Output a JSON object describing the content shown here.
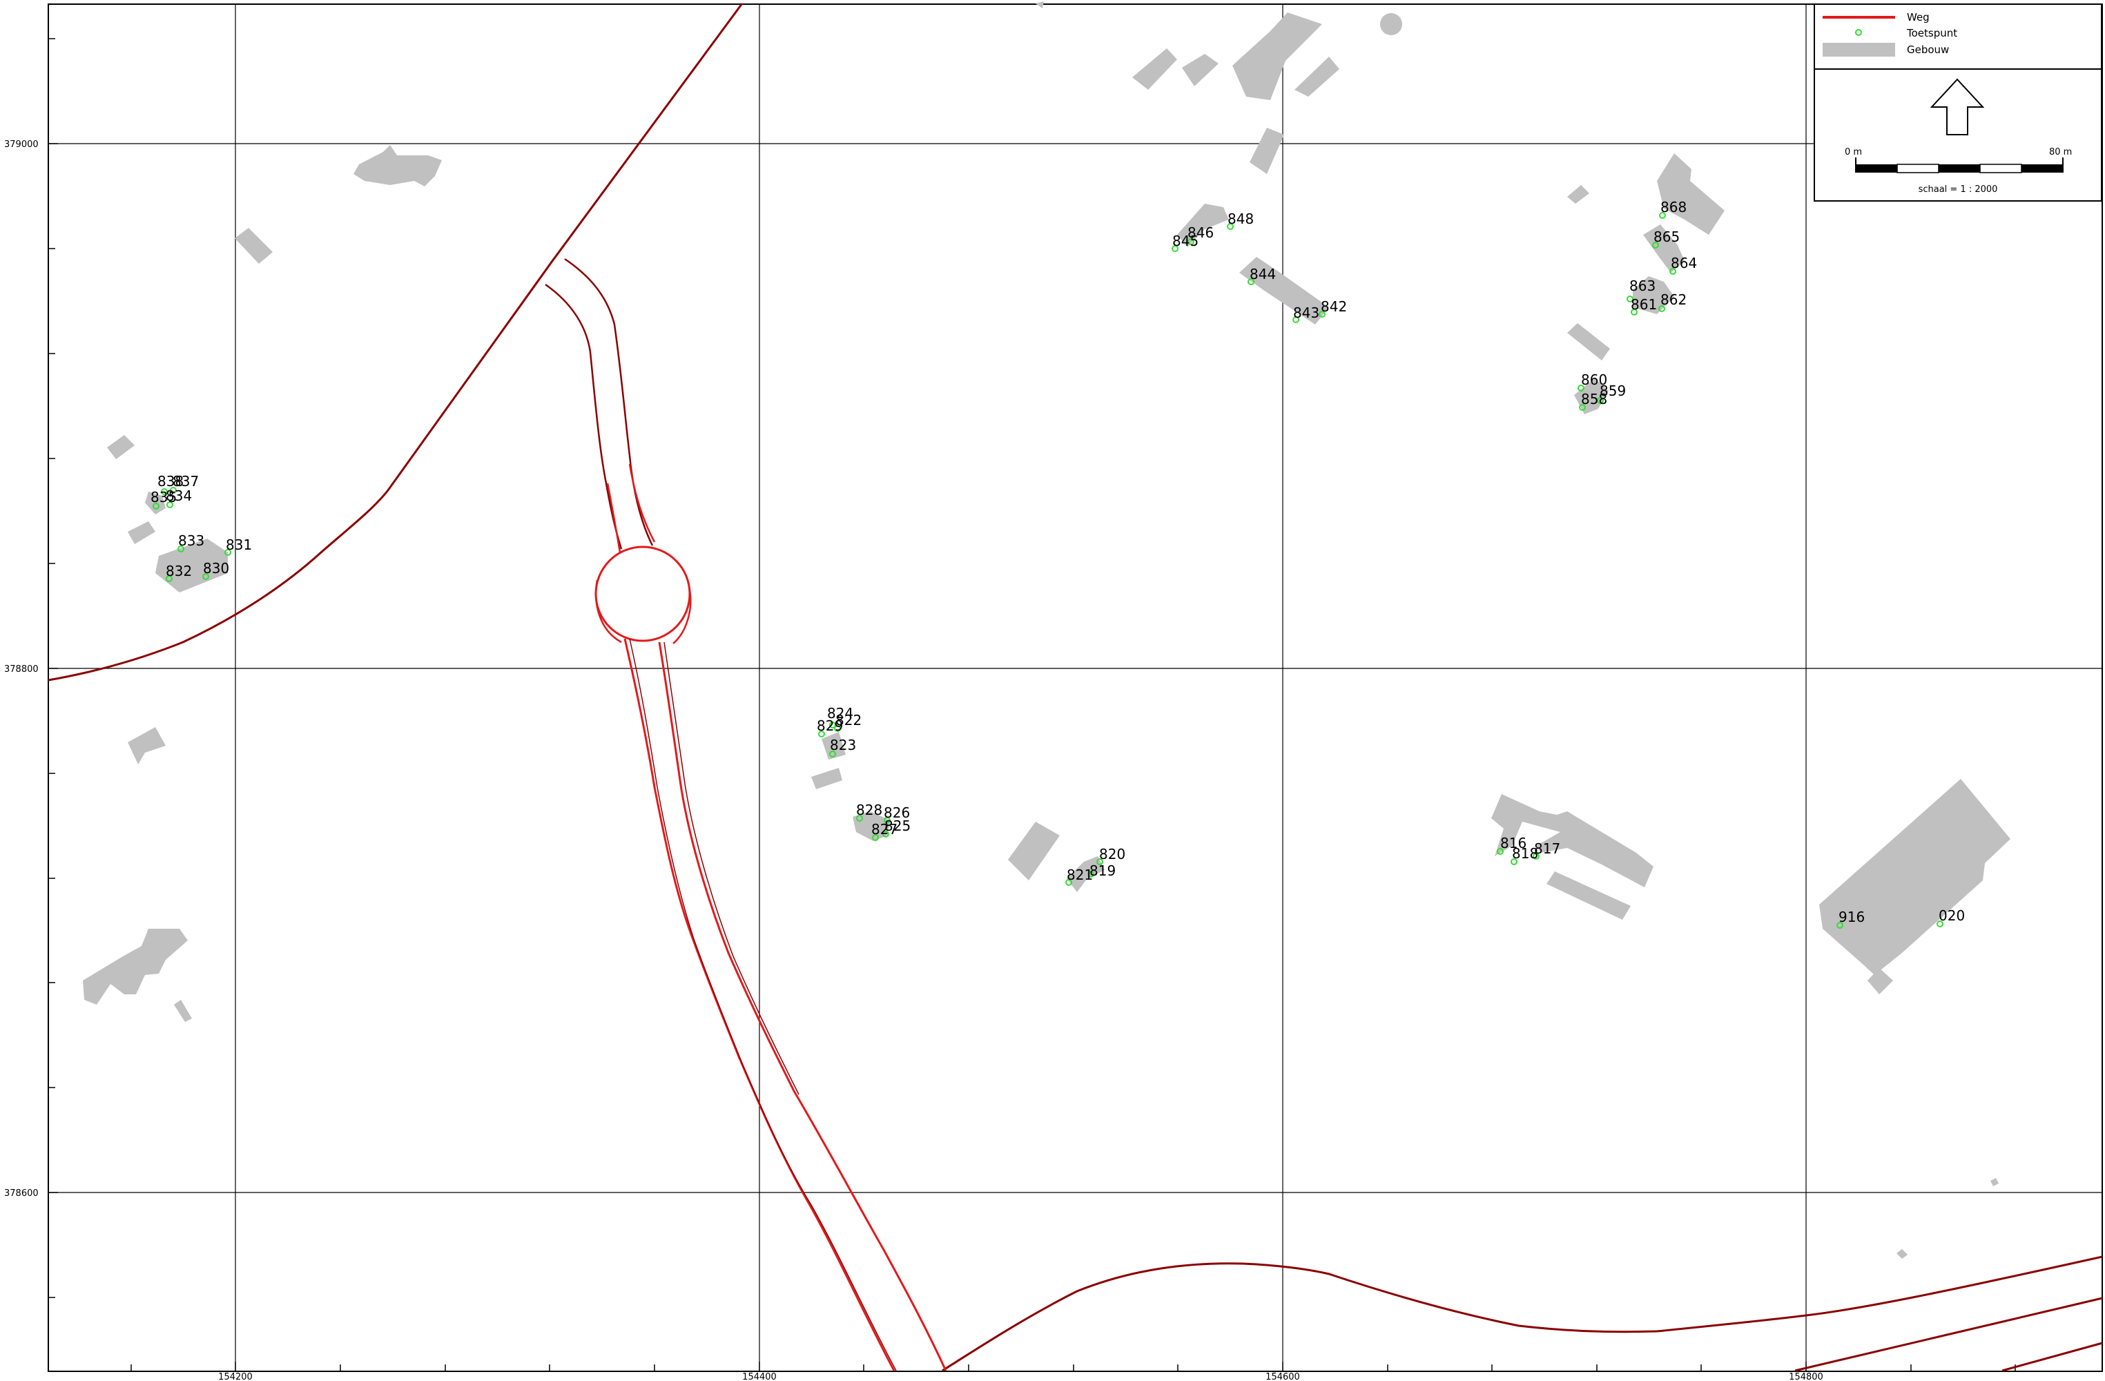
{
  "map": {
    "x_axis_labels": [
      "154200",
      "154400",
      "154600",
      "154800"
    ],
    "y_axis_labels": [
      "379000",
      "378800",
      "378600"
    ],
    "points": [
      {
        "label": "838"
      },
      {
        "label": "837"
      },
      {
        "label": "835"
      },
      {
        "label": "834"
      },
      {
        "label": "833"
      },
      {
        "label": "831"
      },
      {
        "label": "832"
      },
      {
        "label": "830"
      },
      {
        "label": "824"
      },
      {
        "label": "829"
      },
      {
        "label": "822"
      },
      {
        "label": "823"
      },
      {
        "label": "828"
      },
      {
        "label": "826"
      },
      {
        "label": "827"
      },
      {
        "label": "825"
      },
      {
        "label": "820"
      },
      {
        "label": "821"
      },
      {
        "label": "819"
      },
      {
        "label": "845"
      },
      {
        "label": "846"
      },
      {
        "label": "848"
      },
      {
        "label": "844"
      },
      {
        "label": "843"
      },
      {
        "label": "842"
      },
      {
        "label": "868"
      },
      {
        "label": "865"
      },
      {
        "label": "864"
      },
      {
        "label": "863"
      },
      {
        "label": "861"
      },
      {
        "label": "862"
      },
      {
        "label": "860"
      },
      {
        "label": "859"
      },
      {
        "label": "858"
      },
      {
        "label": "816"
      },
      {
        "label": "818"
      },
      {
        "label": "817"
      },
      {
        "label": "916"
      },
      {
        "label": "020"
      }
    ]
  },
  "legend": {
    "items": [
      {
        "label": "Weg",
        "symbol": "red-line",
        "color": "#e31a1c"
      },
      {
        "label": "Toetspunt",
        "symbol": "green-point-icon",
        "color": "#33dd33"
      },
      {
        "label": "Gebouw",
        "symbol": "grey-rect",
        "color": "#c0c0c0"
      }
    ],
    "north_arrow": "north-arrow-icon",
    "scale_start": "0 m",
    "scale_end": "80 m",
    "scale_text": "schaal = 1 : 2000"
  },
  "colors": {
    "building": "#c0c0c0",
    "road_dark": "#8b0000",
    "road_red": "#e31a1c",
    "point": "#33dd33",
    "grid": "#000000"
  }
}
